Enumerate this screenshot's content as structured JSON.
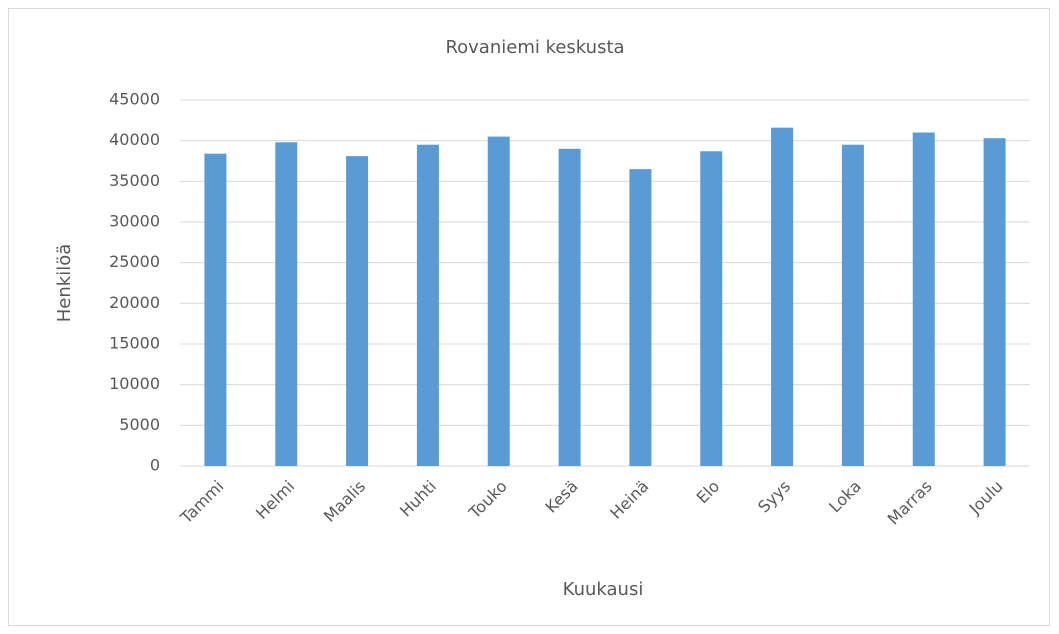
{
  "chart_data": {
    "type": "bar",
    "title": "Rovaniemi keskusta",
    "x_label": "Kuukausi",
    "y_label": "Henkilöä",
    "categories": [
      "Tammi",
      "Helmi",
      "Maalis",
      "Huhti",
      "Touko",
      "Kesä",
      "Heinä",
      "Elo",
      "Syys",
      "Loka",
      "Marras",
      "Joulu"
    ],
    "values": [
      38400,
      39800,
      38100,
      39500,
      40500,
      39000,
      36500,
      38700,
      41600,
      39500,
      41000,
      40300
    ],
    "color": "#5b9bd5",
    "ylim": [
      0,
      45000
    ],
    "yticks": [
      0,
      5000,
      10000,
      15000,
      20000,
      25000,
      30000,
      35000,
      40000,
      45000
    ],
    "grid": true
  }
}
